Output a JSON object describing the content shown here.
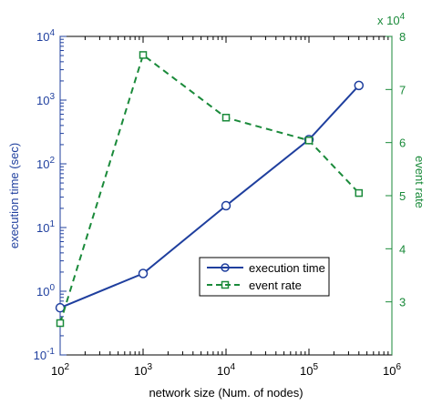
{
  "chart_data": {
    "type": "line",
    "xlabel": "network size (Num. of nodes)",
    "x_scale": "log",
    "xlim": [
      100,
      1000000
    ],
    "x_ticks": [
      {
        "value": 100,
        "base": "10",
        "exp": "2"
      },
      {
        "value": 1000,
        "base": "10",
        "exp": "3"
      },
      {
        "value": 10000,
        "base": "10",
        "exp": "4"
      },
      {
        "value": 100000,
        "base": "10",
        "exp": "5"
      },
      {
        "value": 1000000,
        "base": "10",
        "exp": "6"
      }
    ],
    "left_axis": {
      "label": "execution time (sec)",
      "scale": "log",
      "ylim": [
        0.1,
        10000
      ],
      "color": "#1f3f9e",
      "ticks": [
        {
          "value": 0.1,
          "base": "10",
          "exp": "-1"
        },
        {
          "value": 1,
          "base": "10",
          "exp": "0"
        },
        {
          "value": 10,
          "base": "10",
          "exp": "1"
        },
        {
          "value": 100,
          "base": "10",
          "exp": "2"
        },
        {
          "value": 1000,
          "base": "10",
          "exp": "3"
        },
        {
          "value": 10000,
          "base": "10",
          "exp": "4"
        }
      ]
    },
    "right_axis": {
      "label": "event rate",
      "multiplier": {
        "prefix": "x 10",
        "exp": "4"
      },
      "scale": "linear",
      "ylim": [
        2,
        8
      ],
      "color": "#1a8a3a",
      "ticks": [
        "3",
        "4",
        "5",
        "6",
        "7",
        "8"
      ]
    },
    "series": [
      {
        "name": "execution time",
        "axis": "left",
        "color": "#1f3f9e",
        "line": "solid",
        "marker": "circle",
        "x": [
          100,
          1000,
          10000,
          100000,
          400000
        ],
        "values": [
          0.55,
          1.9,
          22,
          240,
          1700
        ]
      },
      {
        "name": "event rate",
        "axis": "right",
        "color": "#1a8a3a",
        "line": "dashed",
        "marker": "square",
        "x": [
          100,
          1000,
          10000,
          100000,
          400000
        ],
        "values": [
          26000,
          76500,
          64700,
          60400,
          50500
        ]
      }
    ],
    "legend": "center-right",
    "grid": false
  }
}
